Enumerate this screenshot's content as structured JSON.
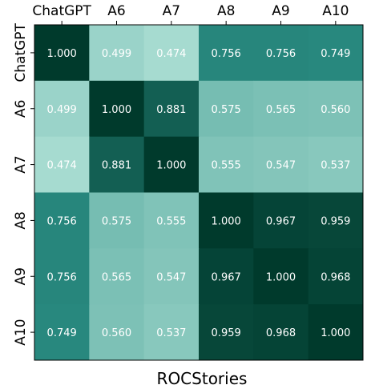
{
  "chart_data": {
    "type": "heatmap",
    "xlabel": "ROCStories",
    "ylabel": "",
    "x_categories": [
      "ChatGPT",
      "A6",
      "A7",
      "A8",
      "A9",
      "A10"
    ],
    "y_categories": [
      "ChatGPT",
      "A6",
      "A7",
      "A8",
      "A9",
      "A10"
    ],
    "x_ticks_position": "top",
    "values": [
      [
        "1.000",
        "0.499",
        "0.474",
        "0.756",
        "0.756",
        "0.749"
      ],
      [
        "0.499",
        "1.000",
        "0.881",
        "0.575",
        "0.565",
        "0.560"
      ],
      [
        "0.474",
        "0.881",
        "1.000",
        "0.555",
        "0.547",
        "0.537"
      ],
      [
        "0.756",
        "0.575",
        "0.555",
        "1.000",
        "0.967",
        "0.959"
      ],
      [
        "0.756",
        "0.565",
        "0.547",
        "0.967",
        "1.000",
        "0.968"
      ],
      [
        "0.749",
        "0.560",
        "0.537",
        "0.959",
        "0.968",
        "1.000"
      ]
    ],
    "colormap": {
      "low_color": "#a6dbd0",
      "mid_color": "#2a8c82",
      "high_color": "#003a2c",
      "vmin": 0.474,
      "vmax": 1.0
    },
    "cell_text_color": "#ffffff",
    "grid": false,
    "legend": "none"
  }
}
